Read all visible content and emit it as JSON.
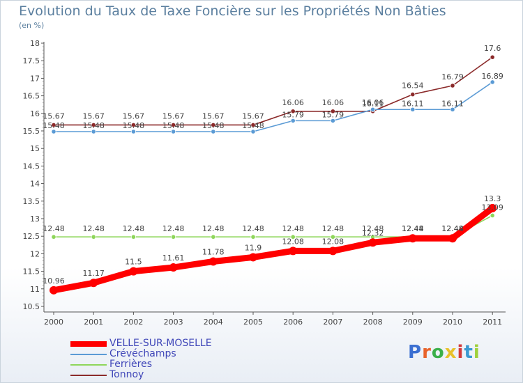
{
  "header": {
    "title": "Evolution du Taux de Taxe Foncière sur les Propriétés Non Bâties",
    "unit": "(en %)"
  },
  "logo": {
    "text": "Proxiti",
    "colors": [
      "#3b6fd1",
      "#e8632b",
      "#3bb04a",
      "#e8c12b",
      "#d23a3a",
      "#3b9ad1",
      "#9fd13b"
    ]
  },
  "chart_data": {
    "type": "line",
    "title": "Evolution du Taux de Taxe Foncière sur les Propriétés Non Bâties",
    "ylabel": "(en %)",
    "xlabel": "",
    "x": [
      "2000",
      "2001",
      "2002",
      "2003",
      "2004",
      "2005",
      "2006",
      "2007",
      "2008",
      "2009",
      "2010",
      "2011"
    ],
    "ylim": [
      10.5,
      18
    ],
    "yticks": [
      "10.5",
      "11",
      "11.5",
      "12",
      "12.5",
      "13",
      "13.5",
      "14",
      "14.5",
      "15",
      "15.5",
      "16",
      "16.5",
      "17",
      "17.5",
      "18"
    ],
    "grid": false,
    "legend_position": "bottom-left",
    "series": [
      {
        "name": "VELLE-SUR-MOSELLE",
        "color": "#ff0000",
        "values": [
          10.96,
          11.17,
          11.5,
          11.61,
          11.78,
          11.9,
          12.08,
          12.08,
          12.32,
          12.44,
          12.44,
          13.3
        ],
        "labels": [
          "10.96",
          "11.17",
          "11.5",
          "11.61",
          "11.78",
          "11.9",
          "12.08",
          "12.08",
          "12.32",
          "12.44",
          "12.44",
          "13.3"
        ]
      },
      {
        "name": "Crévéchamps",
        "color": "#5b9bd5",
        "values": [
          15.48,
          15.48,
          15.48,
          15.48,
          15.48,
          15.48,
          15.79,
          15.79,
          16.11,
          16.11,
          16.11,
          16.89
        ],
        "labels": [
          "15.48",
          "15.48",
          "15.48",
          "15.48",
          "15.48",
          "15.48",
          "15.79",
          "15.79",
          "16.11",
          "16.11",
          "16.11",
          "16.89"
        ]
      },
      {
        "name": "Ferrières",
        "color": "#8ed65a",
        "values": [
          12.48,
          12.48,
          12.48,
          12.48,
          12.48,
          12.48,
          12.48,
          12.48,
          12.48,
          12.48,
          12.48,
          13.09
        ],
        "labels": [
          "12.48",
          "12.48",
          "12.48",
          "12.48",
          "12.48",
          "12.48",
          "12.48",
          "12.48",
          "12.48",
          "12.48",
          "12.48",
          "13.09"
        ]
      },
      {
        "name": "Tonnoy",
        "color": "#8b2a2a",
        "values": [
          15.67,
          15.67,
          15.67,
          15.67,
          15.67,
          15.67,
          16.06,
          16.06,
          16.06,
          16.54,
          16.79,
          17.6
        ],
        "labels": [
          "15.67",
          "15.67",
          "15.67",
          "15.67",
          "15.67",
          "15.67",
          "16.06",
          "16.06",
          "16.06",
          "16.54",
          "16.79",
          "17.6"
        ]
      }
    ]
  }
}
